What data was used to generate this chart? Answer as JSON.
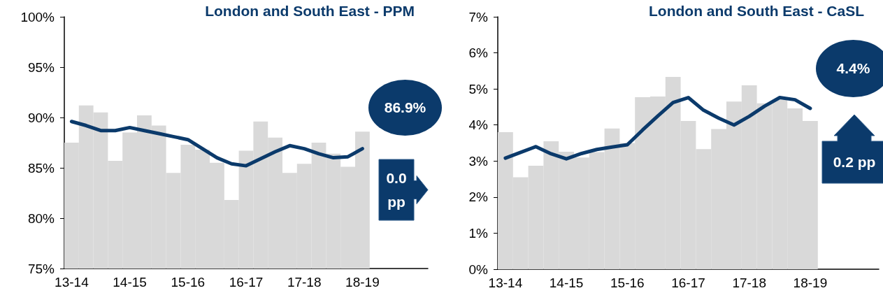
{
  "chart_data": [
    {
      "type": "bar",
      "title": "London and South East - PPM",
      "categories": [
        "13-14",
        null,
        null,
        null,
        "14-15",
        null,
        null,
        null,
        "15-16",
        null,
        null,
        null,
        "16-17",
        null,
        null,
        null,
        "17-18",
        null,
        null,
        null,
        "18-19",
        null,
        null,
        null,
        null
      ],
      "series": [
        {
          "color": "#d9d9d9",
          "values": [
            87.5,
            91.2,
            90.5,
            85.7,
            88.5,
            90.2,
            89.2,
            84.5,
            87.3,
            86.8,
            85.5,
            81.8,
            86.7,
            89.6,
            88.0,
            84.5,
            85.4,
            87.5,
            86.4,
            85.1,
            88.6,
            null,
            null,
            null,
            null
          ]
        },
        {
          "type": "line",
          "color": "#0b3a6b",
          "marker": "none",
          "line_style": "solid",
          "values": [
            89.6,
            89.2,
            88.7,
            88.7,
            89.0,
            88.7,
            88.4,
            88.1,
            87.8,
            86.9,
            86.0,
            85.4,
            85.2,
            85.9,
            86.6,
            87.2,
            86.9,
            86.4,
            86.0,
            86.1,
            86.9,
            null,
            null,
            null,
            null
          ]
        }
      ],
      "ylim": [
        75,
        100
      ],
      "yticks": [
        {
          "value": 75,
          "label": "75%"
        },
        {
          "value": 80,
          "label": "80%"
        },
        {
          "value": 85,
          "label": "85%"
        },
        {
          "value": 90,
          "label": "90%"
        },
        {
          "value": 95,
          "label": "95%"
        },
        {
          "value": 100,
          "label": "100%"
        }
      ],
      "grid": false,
      "annotations": [
        "86.9%",
        "0.0 pp"
      ]
    },
    {
      "type": "bar",
      "title": "London and South East - CaSL",
      "categories": [
        "13-14",
        null,
        null,
        null,
        "14-15",
        null,
        null,
        null,
        "15-16",
        null,
        null,
        null,
        "16-17",
        null,
        null,
        null,
        "17-18",
        null,
        null,
        null,
        "18-19",
        null,
        null,
        null,
        null
      ],
      "series": [
        {
          "color": "#d9d9d9",
          "values": [
            3.8,
            2.55,
            2.87,
            3.55,
            3.26,
            3.1,
            3.25,
            3.9,
            3.5,
            4.77,
            4.79,
            5.33,
            4.11,
            3.33,
            3.89,
            4.65,
            5.1,
            4.6,
            4.7,
            4.46,
            4.11,
            null,
            null,
            null,
            null
          ]
        },
        {
          "type": "line",
          "color": "#0b3a6b",
          "marker": "none",
          "line_style": "solid",
          "values": [
            3.08,
            3.24,
            3.4,
            3.2,
            3.06,
            3.21,
            3.32,
            3.39,
            3.45,
            3.86,
            4.25,
            4.62,
            4.76,
            4.41,
            4.19,
            4.0,
            4.24,
            4.52,
            4.76,
            4.7,
            4.46,
            null,
            null,
            null,
            null
          ]
        }
      ],
      "ylim": [
        0,
        7
      ],
      "yticks": [
        {
          "value": 0,
          "label": "0%"
        },
        {
          "value": 1,
          "label": "1%"
        },
        {
          "value": 2,
          "label": "2%"
        },
        {
          "value": 3,
          "label": "3%"
        },
        {
          "value": 4,
          "label": "4%"
        },
        {
          "value": 5,
          "label": "5%"
        },
        {
          "value": 6,
          "label": "6%"
        },
        {
          "value": 7,
          "label": "7%"
        }
      ],
      "grid": false,
      "annotations": [
        "4.4%",
        "0.2 pp"
      ]
    }
  ]
}
